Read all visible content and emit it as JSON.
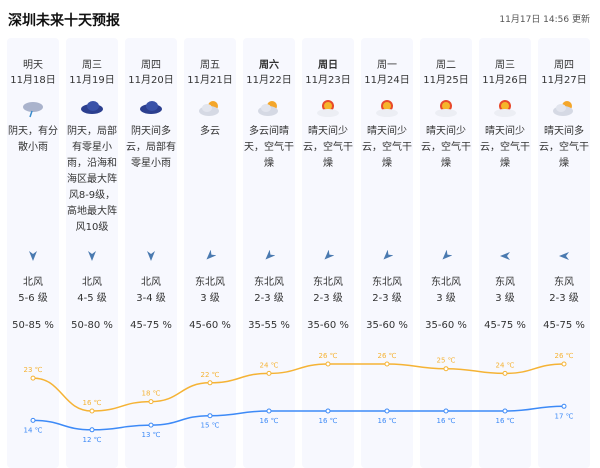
{
  "header": {
    "title": "深圳未来十天预报",
    "updated": "11月17日 14:56 更新"
  },
  "colors": {
    "high": "#f5b335",
    "low": "#3d8af7",
    "wind_arrow": "#4a7ab0"
  },
  "days": [
    {
      "day": "明天",
      "date": "11月18日",
      "icon": "overcast-rain-icon",
      "desc": "阴天，有分散小雨",
      "wind_dir": "北风",
      "wind_level": "5-6 级",
      "wind_arrow": "north",
      "humidity": "50-85 %",
      "high": "23 ℃",
      "low": "14 ℃",
      "bold": false
    },
    {
      "day": "周三",
      "date": "11月19日",
      "icon": "overcast-icon",
      "desc": "阴天，局部有零星小雨，沿海和海区最大阵风8-9级，高地最大阵风10级",
      "wind_dir": "北风",
      "wind_level": "4-5 级",
      "wind_arrow": "north",
      "humidity": "50-80 %",
      "high": "16 ℃",
      "low": "12 ℃",
      "bold": false
    },
    {
      "day": "周四",
      "date": "11月20日",
      "icon": "overcast-icon",
      "desc": "阴天间多云，局部有零星小雨",
      "wind_dir": "北风",
      "wind_level": "3-4 级",
      "wind_arrow": "north",
      "humidity": "45-75 %",
      "high": "18 ℃",
      "low": "13 ℃",
      "bold": false
    },
    {
      "day": "周五",
      "date": "11月21日",
      "icon": "partly-cloudy-icon",
      "desc": "多云",
      "wind_dir": "东北风",
      "wind_level": "3 级",
      "wind_arrow": "northeast",
      "humidity": "45-60 %",
      "high": "22 ℃",
      "low": "15 ℃",
      "bold": false
    },
    {
      "day": "周六",
      "date": "11月22日",
      "icon": "partly-cloudy-icon",
      "desc": "多云间晴天，空气干燥",
      "wind_dir": "东北风",
      "wind_level": "2-3 级",
      "wind_arrow": "northeast",
      "humidity": "35-55 %",
      "high": "24 ℃",
      "low": "16 ℃",
      "bold": true
    },
    {
      "day": "周日",
      "date": "11月23日",
      "icon": "sunny-cloud-icon",
      "desc": "晴天间少云，空气干燥",
      "wind_dir": "东北风",
      "wind_level": "2-3 级",
      "wind_arrow": "northeast",
      "humidity": "35-60 %",
      "high": "26 ℃",
      "low": "16 ℃",
      "bold": true
    },
    {
      "day": "周一",
      "date": "11月24日",
      "icon": "sunny-cloud-icon",
      "desc": "晴天间少云，空气干燥",
      "wind_dir": "东北风",
      "wind_level": "2-3 级",
      "wind_arrow": "northeast",
      "humidity": "35-60 %",
      "high": "26 ℃",
      "low": "16 ℃",
      "bold": false
    },
    {
      "day": "周二",
      "date": "11月25日",
      "icon": "sunny-cloud-icon",
      "desc": "晴天间少云，空气干燥",
      "wind_dir": "东北风",
      "wind_level": "3 级",
      "wind_arrow": "northeast",
      "humidity": "35-60 %",
      "high": "25 ℃",
      "low": "16 ℃",
      "bold": false
    },
    {
      "day": "周三",
      "date": "11月26日",
      "icon": "sunny-cloud-icon",
      "desc": "晴天间少云，空气干燥",
      "wind_dir": "东风",
      "wind_level": "3 级",
      "wind_arrow": "east",
      "humidity": "45-75 %",
      "high": "24 ℃",
      "low": "16 ℃",
      "bold": false
    },
    {
      "day": "周四",
      "date": "11月27日",
      "icon": "partly-cloudy-icon",
      "desc": "晴天间多云，空气干燥",
      "wind_dir": "东风",
      "wind_level": "2-3 级",
      "wind_arrow": "east",
      "humidity": "45-75 %",
      "high": "26 ℃",
      "low": "17 ℃",
      "bold": false
    }
  ],
  "temps": {
    "high": [
      23,
      16,
      18,
      22,
      24,
      26,
      26,
      25,
      24,
      26
    ],
    "low": [
      14,
      12,
      13,
      15,
      16,
      16,
      16,
      16,
      16,
      17
    ]
  }
}
